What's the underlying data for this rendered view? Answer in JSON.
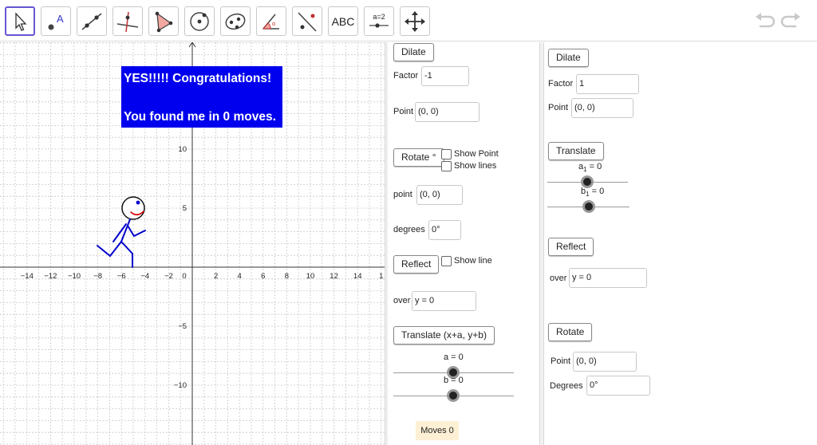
{
  "toolbar": {
    "tools": [
      "move-tool",
      "point-tool",
      "line-tool",
      "perpendicular-tool",
      "polygon-tool",
      "circle-tool",
      "conic-tool",
      "angle-tool",
      "reflect-tool",
      "text-tool",
      "slider-tool",
      "move-graphics-tool"
    ],
    "text_tool_label": "ABC",
    "slider_tool_label": "a=2"
  },
  "graph": {
    "x_ticks": [
      "−14",
      "−12",
      "−10",
      "−8",
      "−6",
      "−4",
      "−2",
      "0",
      "2",
      "4",
      "6",
      "8",
      "10",
      "12",
      "14",
      "1"
    ],
    "y_ticks": [
      "10",
      "5",
      "−5",
      "−10"
    ],
    "message_line1": "YES!!!!! Congratulations!",
    "message_line2": "You found me in 0 moves.",
    "colors": {
      "message_bg": "#0000ee",
      "figure": "#0000cc",
      "smile": "#dd0000"
    }
  },
  "mid_panel": {
    "dilate_button": "Dilate",
    "factor_label": "Factor",
    "factor_value": "-1",
    "dilate_point_label": "Point",
    "dilate_point_value": "(0, 0)",
    "rotate_button": "Rotate °",
    "show_point_label": "Show Point",
    "show_lines_label": "Show lines",
    "rotate_point_label": "point",
    "rotate_point_value": "(0, 0)",
    "degrees_label": "degrees",
    "degrees_value": "0°",
    "reflect_button": "Reflect",
    "show_line_label": "Show line",
    "over_label": "over",
    "over_value": "y = 0",
    "translate_button": "Translate (x+a, y+b)",
    "slider_a_label": "a = 0",
    "slider_b_label": "b = 0",
    "moves_label": "Moves 0"
  },
  "right_panel": {
    "dilate_button": "Dilate",
    "factor_label": "Factor",
    "factor_value": "1",
    "point_label": "Point",
    "point_value": "(0, 0)",
    "translate_button": "Translate",
    "slider_a1_label": "a",
    "slider_a1_sub": "1",
    "slider_a1_value": " = 0",
    "slider_b1_label": "b",
    "slider_b1_sub": "1",
    "slider_b1_value": " = 0",
    "reflect_button": "Reflect",
    "over_label": "over",
    "over_value": "y = 0",
    "rotate_button": "Rotate",
    "rotate_point_label": "Point",
    "rotate_point_value": "(0, 0)",
    "degrees_label": "Degrees",
    "degrees_value": "0°"
  }
}
